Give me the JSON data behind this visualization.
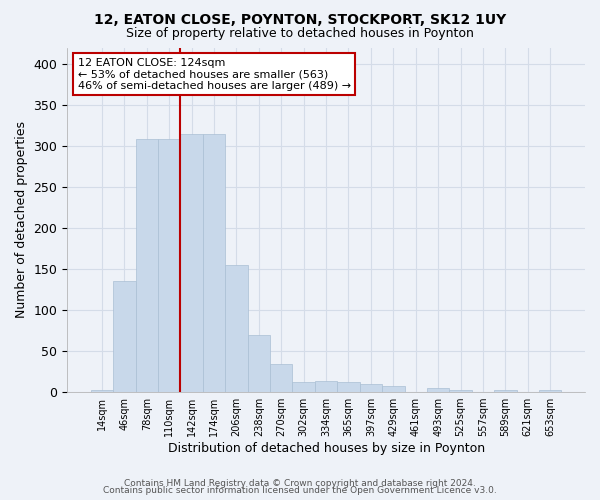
{
  "title1": "12, EATON CLOSE, POYNTON, STOCKPORT, SK12 1UY",
  "title2": "Size of property relative to detached houses in Poynton",
  "xlabel": "Distribution of detached houses by size in Poynton",
  "ylabel": "Number of detached properties",
  "footnote1": "Contains HM Land Registry data © Crown copyright and database right 2024.",
  "footnote2": "Contains public sector information licensed under the Open Government Licence v3.0.",
  "bin_labels": [
    "14sqm",
    "46sqm",
    "78sqm",
    "110sqm",
    "142sqm",
    "174sqm",
    "206sqm",
    "238sqm",
    "270sqm",
    "302sqm",
    "334sqm",
    "365sqm",
    "397sqm",
    "429sqm",
    "461sqm",
    "493sqm",
    "525sqm",
    "557sqm",
    "589sqm",
    "621sqm",
    "653sqm"
  ],
  "bar_heights": [
    3,
    136,
    309,
    309,
    315,
    315,
    155,
    70,
    34,
    12,
    14,
    12,
    10,
    8,
    0,
    5,
    3,
    0,
    2,
    0,
    3
  ],
  "bar_color": "#c8d8ea",
  "bar_edge_color": "#aabfd4",
  "grid_color": "#d4dce8",
  "vline_x_index": 3.5,
  "vline_color": "#bb0000",
  "annotation_line1": "12 EATON CLOSE: 124sqm",
  "annotation_line2": "← 53% of detached houses are smaller (563)",
  "annotation_line3": "46% of semi-detached houses are larger (489) →",
  "annotation_box_color": "#ffffff",
  "annotation_box_edge": "#bb0000",
  "ylim": [
    0,
    420
  ],
  "yticks": [
    0,
    50,
    100,
    150,
    200,
    250,
    300,
    350,
    400
  ],
  "background_color": "#eef2f8"
}
